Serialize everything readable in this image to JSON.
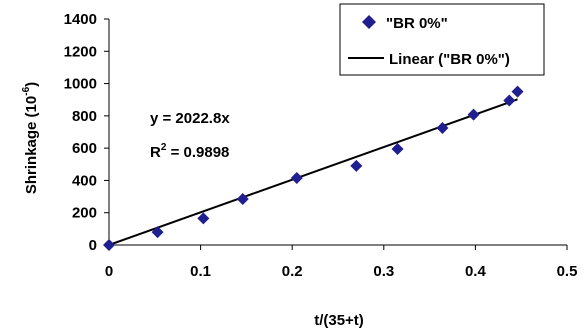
{
  "chart_data": {
    "type": "scatter",
    "title": "",
    "xlabel": "t/(35+t)",
    "ylabel_prefix": "Shrinkage (10",
    "ylabel_exponent": "-6",
    "ylabel_suffix": ")",
    "xlim": [
      0,
      0.5
    ],
    "ylim": [
      0,
      1400
    ],
    "x_ticks": [
      0,
      0.1,
      0.2,
      0.3,
      0.4,
      0.5
    ],
    "y_ticks": [
      0,
      200,
      400,
      600,
      800,
      1000,
      1200,
      1400
    ],
    "x_tick_labels": [
      "0",
      "0.1",
      "0.2",
      "0.3",
      "0.4",
      "0.5"
    ],
    "y_tick_labels": [
      "0",
      "200",
      "400",
      "600",
      "800",
      "1000",
      "1200",
      "1400"
    ],
    "grid": false,
    "legend_position": "top-right",
    "series": [
      {
        "name": "\"BR 0%\"",
        "marker": "diamond",
        "color": "#1f1f8f",
        "x": [
          0,
          0.053,
          0.103,
          0.146,
          0.205,
          0.27,
          0.315,
          0.364,
          0.398,
          0.437,
          0.446
        ],
        "y": [
          0,
          80,
          165,
          285,
          415,
          490,
          595,
          725,
          808,
          895,
          950
        ]
      }
    ],
    "trendline": {
      "name": "Linear (\"BR 0%\")",
      "color": "#000000",
      "slope": 2022.8,
      "x_range": [
        0,
        0.446
      ]
    },
    "annotations": {
      "equation": "y = 2022.8x",
      "r2_prefix": "R",
      "r2_exponent": "2",
      "r2_suffix": " = 0.9898"
    }
  }
}
